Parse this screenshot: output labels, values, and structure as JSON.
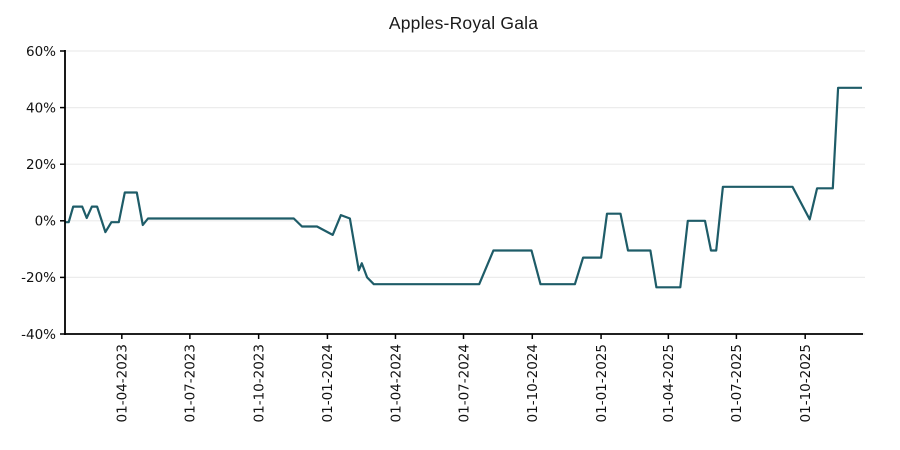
{
  "chart_data": {
    "type": "line",
    "title": "Apples-Royal Gala",
    "xlabel": "",
    "ylabel": "",
    "legend_position": "none",
    "grid": "horizontal",
    "ylim": [
      -40,
      60
    ],
    "xlim": [
      "2023-01-15",
      "2025-12-16"
    ],
    "colors": {
      "line": "#1e5c68",
      "grid": "#ececec",
      "axis": "#000000",
      "tick_text": "#111111",
      "background": "#ffffff"
    },
    "y_ticks": [
      {
        "value": 60,
        "label": "60%"
      },
      {
        "value": 40,
        "label": "40%"
      },
      {
        "value": 20,
        "label": "20%"
      },
      {
        "value": 0,
        "label": "0%"
      },
      {
        "value": -20,
        "label": "-20%"
      },
      {
        "value": -40,
        "label": "-40%"
      }
    ],
    "x_ticks": [
      {
        "date": "2023-04-01",
        "label": "01-04-2023"
      },
      {
        "date": "2023-07-01",
        "label": "01-07-2023"
      },
      {
        "date": "2023-10-01",
        "label": "01-10-2023"
      },
      {
        "date": "2024-01-01",
        "label": "01-01-2024"
      },
      {
        "date": "2024-04-01",
        "label": "01-04-2024"
      },
      {
        "date": "2024-07-01",
        "label": "01-07-2024"
      },
      {
        "date": "2024-10-01",
        "label": "01-10-2024"
      },
      {
        "date": "2025-01-01",
        "label": "01-01-2025"
      },
      {
        "date": "2025-04-01",
        "label": "01-04-2025"
      },
      {
        "date": "2025-07-01",
        "label": "01-07-2025"
      },
      {
        "date": "2025-10-01",
        "label": "01-10-2025"
      }
    ],
    "series": [
      {
        "name": "Apples-Royal Gala",
        "unit": "%",
        "points": [
          [
            "2023-01-15",
            -0.5
          ],
          [
            "2023-01-20",
            -0.5
          ],
          [
            "2023-01-26",
            5
          ],
          [
            "2023-02-07",
            5
          ],
          [
            "2023-02-13",
            1
          ],
          [
            "2023-02-20",
            5
          ],
          [
            "2023-02-27",
            5
          ],
          [
            "2023-03-10",
            -4
          ],
          [
            "2023-03-18",
            -0.5
          ],
          [
            "2023-03-28",
            -0.5
          ],
          [
            "2023-04-05",
            10
          ],
          [
            "2023-04-21",
            10
          ],
          [
            "2023-04-29",
            -1.5
          ],
          [
            "2023-05-06",
            0.8
          ],
          [
            "2023-11-17",
            0.8
          ],
          [
            "2023-11-28",
            -2
          ],
          [
            "2023-12-18",
            -2
          ],
          [
            "2024-01-08",
            -5
          ],
          [
            "2024-01-19",
            2
          ],
          [
            "2024-01-31",
            0.8
          ],
          [
            "2024-02-12",
            -17.5
          ],
          [
            "2024-02-16",
            -15
          ],
          [
            "2024-02-23",
            -20
          ],
          [
            "2024-03-03",
            -22.4
          ],
          [
            "2024-07-22",
            -22.4
          ],
          [
            "2024-08-10",
            -10.5
          ],
          [
            "2024-09-30",
            -10.5
          ],
          [
            "2024-10-12",
            -22.4
          ],
          [
            "2024-11-27",
            -22.4
          ],
          [
            "2024-12-08",
            -13
          ],
          [
            "2025-01-01",
            -13
          ],
          [
            "2025-01-09",
            2.5
          ],
          [
            "2025-01-27",
            2.5
          ],
          [
            "2025-02-06",
            -10.5
          ],
          [
            "2025-03-08",
            -10.5
          ],
          [
            "2025-03-16",
            -23.5
          ],
          [
            "2025-04-17",
            -23.5
          ],
          [
            "2025-04-27",
            0
          ],
          [
            "2025-05-20",
            0
          ],
          [
            "2025-05-28",
            -10.5
          ],
          [
            "2025-06-04",
            -10.5
          ],
          [
            "2025-06-13",
            12
          ],
          [
            "2025-09-14",
            12
          ],
          [
            "2025-10-07",
            0.5
          ],
          [
            "2025-10-17",
            11.5
          ],
          [
            "2025-11-07",
            11.5
          ],
          [
            "2025-11-14",
            47
          ],
          [
            "2025-12-16",
            47
          ]
        ]
      }
    ]
  }
}
